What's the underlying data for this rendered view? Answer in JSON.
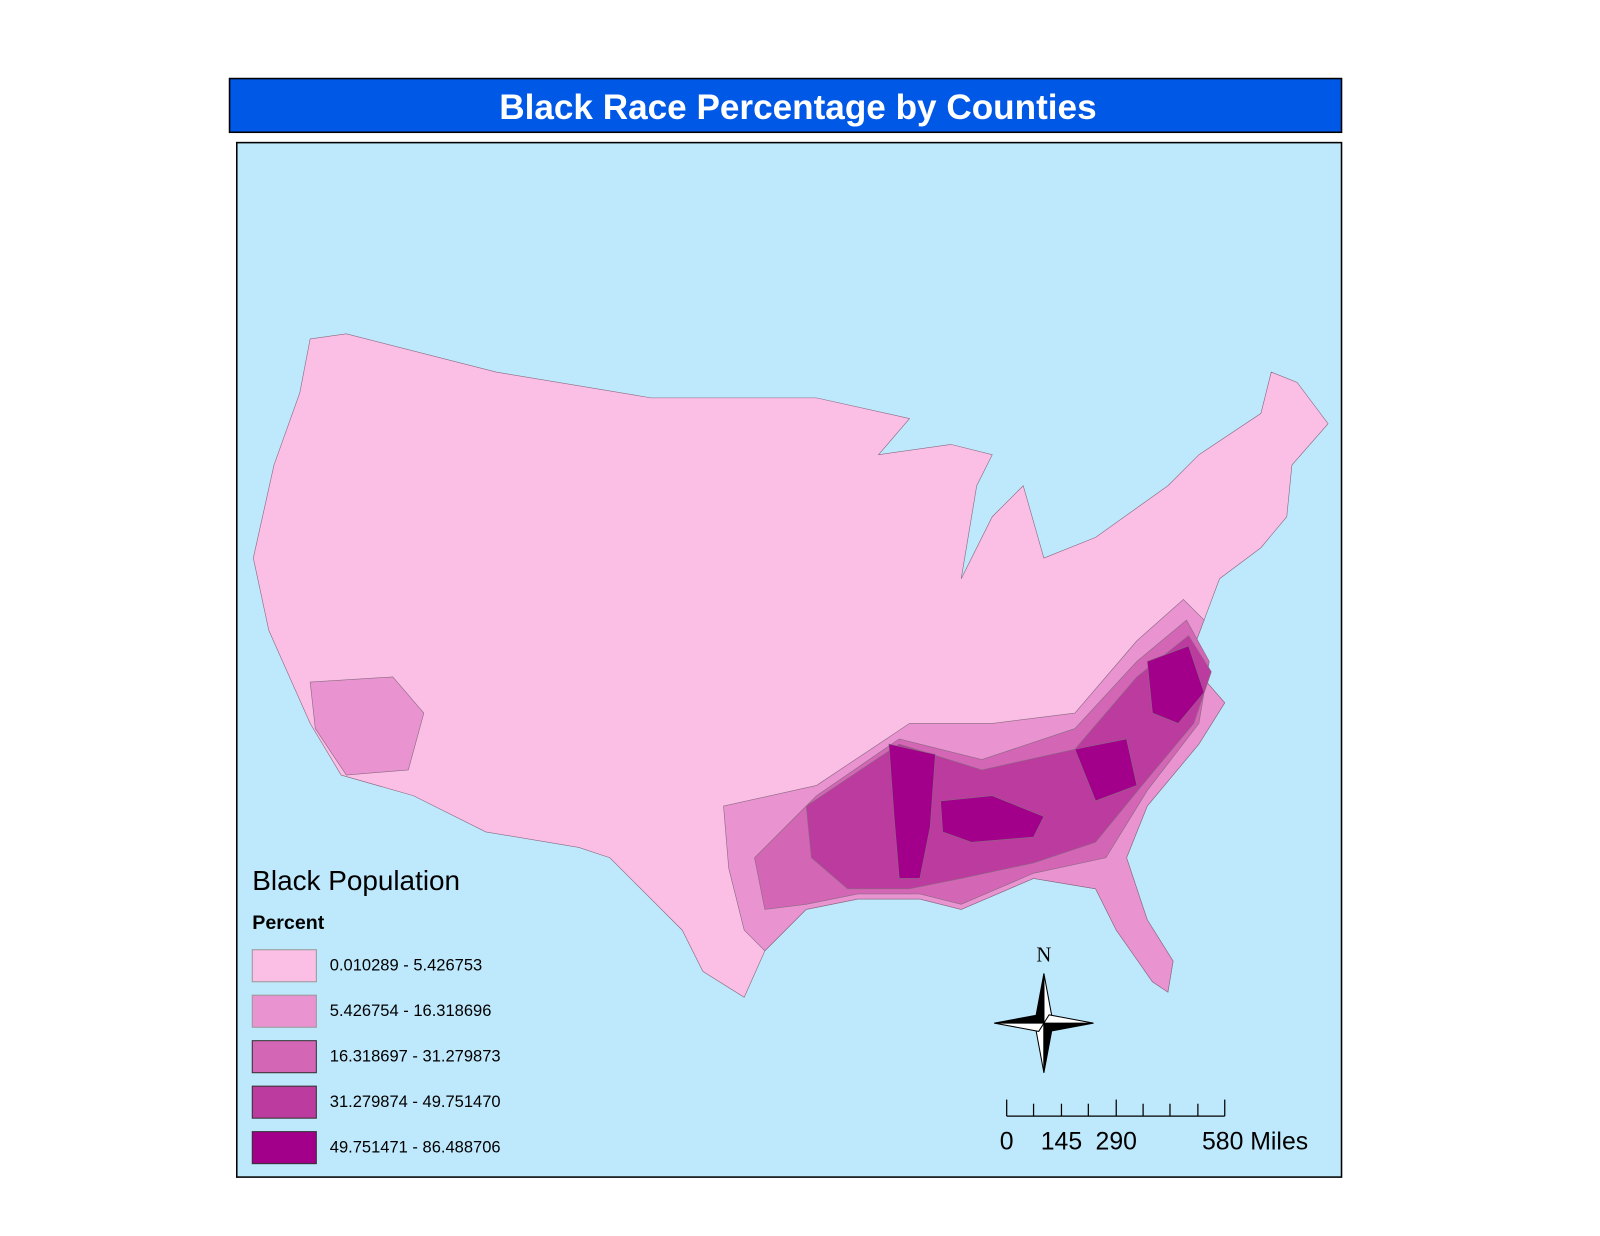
{
  "header": {
    "title": "Black Race Percentage by Counties"
  },
  "legend": {
    "title": "Black Population",
    "subtitle": "Percent",
    "classes": [
      {
        "label": "0.010289 - 5.426753",
        "color": "#fbbfe6"
      },
      {
        "label": "5.426754 - 16.318696",
        "color": "#e993d1"
      },
      {
        "label": "16.318697 - 31.279873",
        "color": "#d466b6"
      },
      {
        "label": "31.279874 - 49.751470",
        "color": "#bb3b9e"
      },
      {
        "label": "49.751471 - 86.488706",
        "color": "#a2008b"
      }
    ]
  },
  "north_arrow": {
    "label": "N"
  },
  "scale_bar": {
    "labels": [
      "0",
      "145",
      "290",
      "580 Miles"
    ]
  }
}
